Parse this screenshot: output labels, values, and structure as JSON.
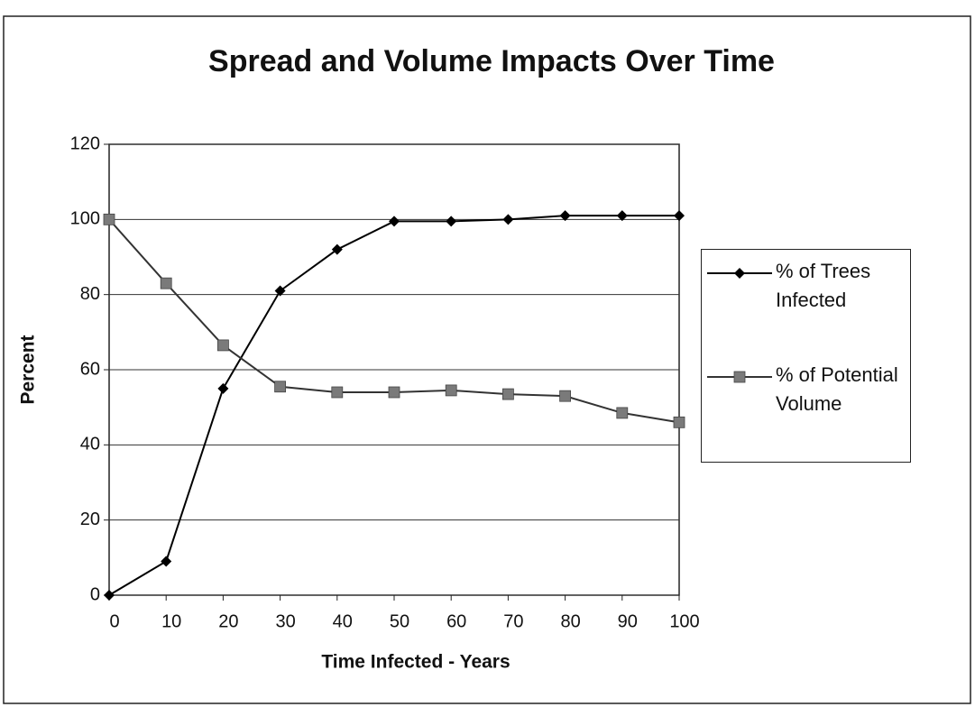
{
  "chart_data": {
    "type": "line",
    "title": "Spread and Volume Impacts Over Time",
    "xlabel": "Time Infected - Years",
    "ylabel": "Percent",
    "x": [
      0,
      10,
      20,
      30,
      40,
      50,
      60,
      70,
      80,
      90,
      100
    ],
    "series": [
      {
        "name": "% of Trees Infected",
        "color": "#000000",
        "marker": "diamond",
        "marker_color": "#000000",
        "values": [
          0,
          9,
          55,
          81,
          92,
          99.5,
          99.5,
          100,
          101,
          101,
          101
        ]
      },
      {
        "name": "% of Potential Volume",
        "color": "#333333",
        "marker": "square",
        "marker_color": "#7a7a7a",
        "values": [
          100,
          83,
          66.5,
          55.5,
          54,
          54,
          54.5,
          53.5,
          53,
          48.5,
          46
        ]
      }
    ],
    "xlim": [
      0,
      100
    ],
    "xticks": [
      0,
      10,
      20,
      30,
      40,
      50,
      60,
      70,
      80,
      90,
      100
    ],
    "ylim": [
      0,
      120
    ],
    "yticks": [
      0,
      20,
      40,
      60,
      80,
      100,
      120
    ],
    "grid": true,
    "legend": "right"
  }
}
